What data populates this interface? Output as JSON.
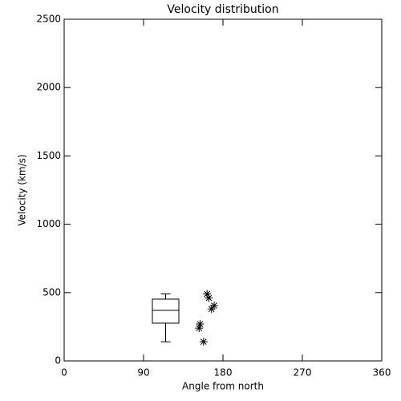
{
  "chart_data": {
    "type": "box",
    "title": "Velocity distribution",
    "x_label": "Angle from north",
    "y_label": "Velocity (km/s)",
    "xlim": [
      0,
      360
    ],
    "xticks": [
      0,
      90,
      180,
      270,
      360
    ],
    "ylim": [
      0,
      2500
    ],
    "yticks": [
      0,
      500,
      1000,
      1500,
      2000,
      2500
    ],
    "color": "#000000",
    "boxes": [
      {
        "x": 115,
        "whisker_low": 140,
        "q1": 276,
        "median": 370,
        "q3": 452,
        "whisker_high": 490
      }
    ],
    "points": {
      "x": [
        162,
        164,
        170,
        167,
        154,
        153,
        158
      ],
      "y": [
        490,
        460,
        405,
        380,
        270,
        240,
        140
      ]
    }
  }
}
